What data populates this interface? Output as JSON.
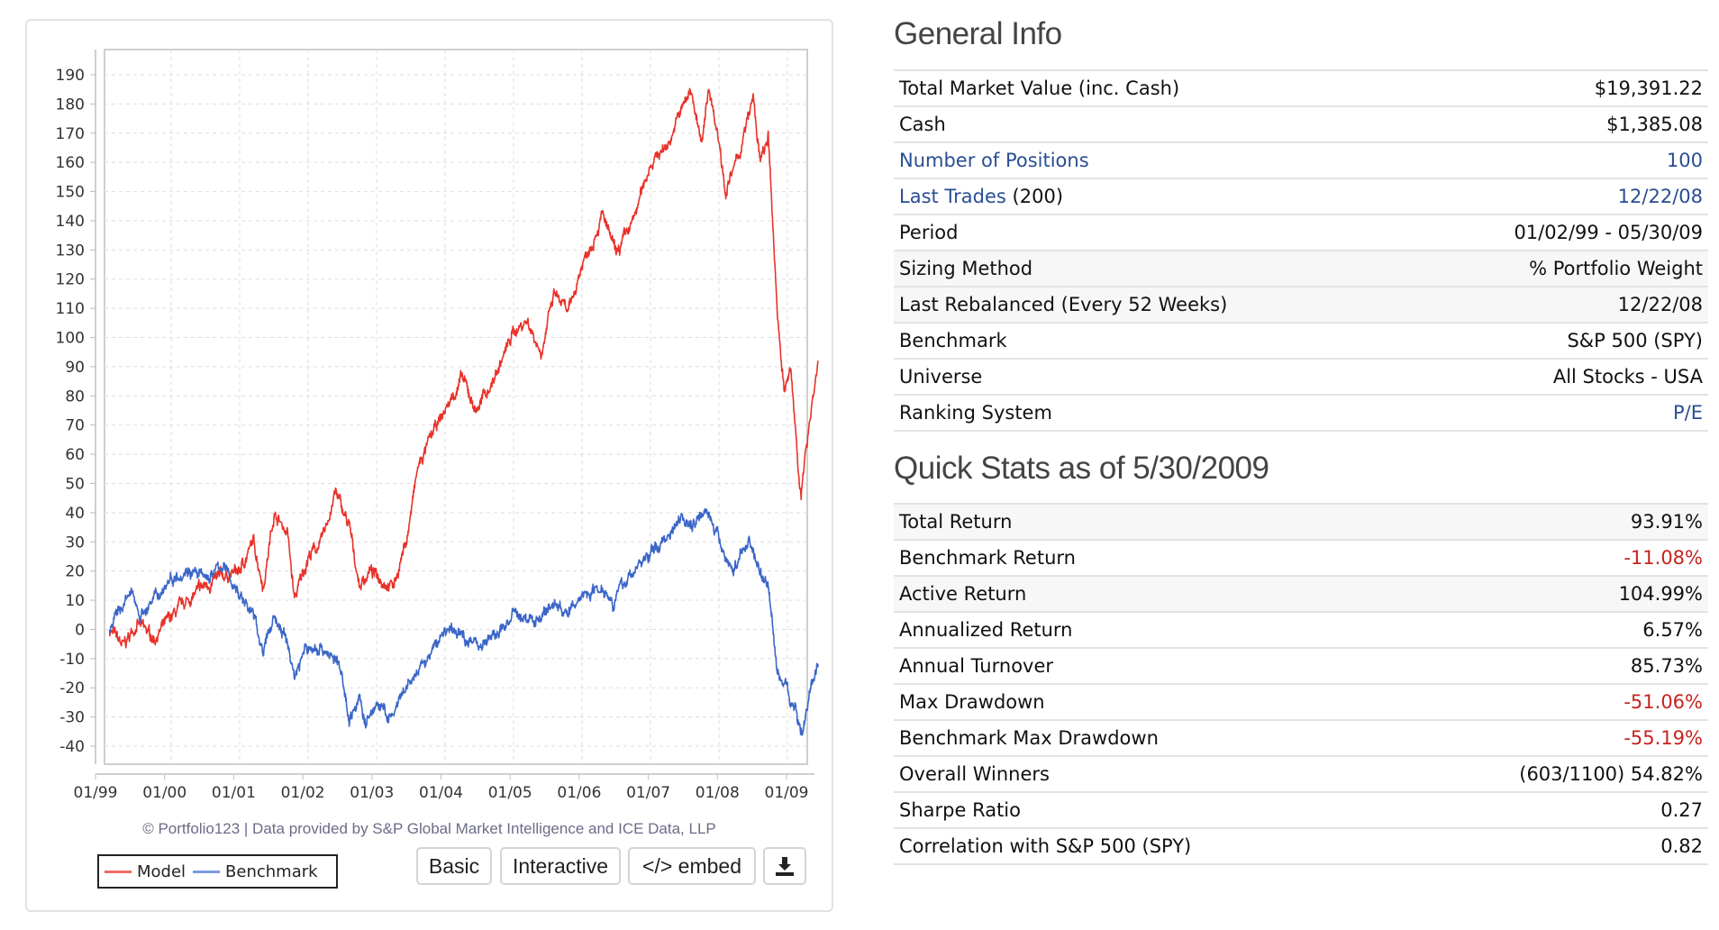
{
  "chart_panel": {
    "footer": "© Portfolio123 | Data provided by S&P Global Market Intelligence and ICE Data, LLP",
    "legend": [
      {
        "label": "Model",
        "color": "#e8322a"
      },
      {
        "label": "Benchmark",
        "color": "#3b66c8"
      }
    ],
    "buttons": {
      "basic": "Basic",
      "interactive": "Interactive",
      "embed": "</> embed",
      "download_icon": "download-icon"
    }
  },
  "chart_data": {
    "type": "line",
    "title": "",
    "xlabel": "",
    "ylabel": "",
    "ylim": [
      -40,
      190
    ],
    "yticks": [
      "190",
      "180",
      "170",
      "160",
      "150",
      "140",
      "130",
      "120",
      "110",
      "100",
      "90",
      "80",
      "70",
      "60",
      "50",
      "40",
      "30",
      "20",
      "10",
      "0",
      "-10",
      "-20",
      "-30",
      "-40"
    ],
    "xticks": [
      "01/99",
      "01/00",
      "01/01",
      "01/02",
      "01/03",
      "01/04",
      "01/05",
      "01/06",
      "01/07",
      "01/08",
      "01/09"
    ],
    "grid": true,
    "legend_position": "bottom-left",
    "series": [
      {
        "name": "Model",
        "color": "#e8322a",
        "points": [
          [
            1999.1,
            0
          ],
          [
            1999.3,
            -6
          ],
          [
            1999.5,
            2
          ],
          [
            1999.75,
            -3
          ],
          [
            2000.0,
            4
          ],
          [
            2000.25,
            10
          ],
          [
            2000.5,
            15
          ],
          [
            2000.75,
            18
          ],
          [
            2001.0,
            20
          ],
          [
            2001.2,
            30
          ],
          [
            2001.35,
            15
          ],
          [
            2001.5,
            40
          ],
          [
            2001.7,
            33
          ],
          [
            2001.8,
            10
          ],
          [
            2002.0,
            25
          ],
          [
            2002.2,
            30
          ],
          [
            2002.4,
            47
          ],
          [
            2002.6,
            35
          ],
          [
            2002.75,
            15
          ],
          [
            2002.9,
            20
          ],
          [
            2003.1,
            17
          ],
          [
            2003.25,
            15
          ],
          [
            2003.45,
            32
          ],
          [
            2003.6,
            55
          ],
          [
            2003.8,
            66
          ],
          [
            2004.0,
            75
          ],
          [
            2004.25,
            86
          ],
          [
            2004.45,
            75
          ],
          [
            2004.7,
            85
          ],
          [
            2005.0,
            102
          ],
          [
            2005.2,
            106
          ],
          [
            2005.4,
            95
          ],
          [
            2005.6,
            115
          ],
          [
            2005.8,
            108
          ],
          [
            2006.0,
            125
          ],
          [
            2006.3,
            142
          ],
          [
            2006.5,
            128
          ],
          [
            2006.75,
            140
          ],
          [
            2007.0,
            160
          ],
          [
            2007.25,
            166
          ],
          [
            2007.45,
            178
          ],
          [
            2007.6,
            185
          ],
          [
            2007.75,
            165
          ],
          [
            2007.85,
            186
          ],
          [
            2008.0,
            168
          ],
          [
            2008.1,
            150
          ],
          [
            2008.3,
            163
          ],
          [
            2008.5,
            182
          ],
          [
            2008.6,
            160
          ],
          [
            2008.72,
            168
          ],
          [
            2008.85,
            110
          ],
          [
            2008.95,
            82
          ],
          [
            2009.05,
            88
          ],
          [
            2009.2,
            45
          ],
          [
            2009.32,
            72
          ],
          [
            2009.45,
            92
          ]
        ]
      },
      {
        "name": "Benchmark",
        "color": "#3b66c8",
        "points": [
          [
            1999.1,
            0
          ],
          [
            1999.3,
            9
          ],
          [
            1999.45,
            12
          ],
          [
            1999.55,
            5
          ],
          [
            1999.75,
            10
          ],
          [
            2000.0,
            18
          ],
          [
            2000.25,
            21
          ],
          [
            2000.5,
            17
          ],
          [
            2000.75,
            22
          ],
          [
            2001.0,
            12
          ],
          [
            2001.2,
            5
          ],
          [
            2001.35,
            -8
          ],
          [
            2001.5,
            5
          ],
          [
            2001.7,
            -5
          ],
          [
            2001.8,
            -16
          ],
          [
            2001.95,
            -7
          ],
          [
            2002.2,
            -6
          ],
          [
            2002.45,
            -12
          ],
          [
            2002.6,
            -30
          ],
          [
            2002.75,
            -24
          ],
          [
            2002.85,
            -33
          ],
          [
            2003.0,
            -25
          ],
          [
            2003.2,
            -31
          ],
          [
            2003.5,
            -18
          ],
          [
            2003.75,
            -10
          ],
          [
            2004.0,
            0
          ],
          [
            2004.25,
            -2
          ],
          [
            2004.5,
            -5
          ],
          [
            2004.75,
            -2
          ],
          [
            2005.0,
            5
          ],
          [
            2005.3,
            3
          ],
          [
            2005.6,
            9
          ],
          [
            2005.8,
            5
          ],
          [
            2006.0,
            12
          ],
          [
            2006.3,
            15
          ],
          [
            2006.45,
            10
          ],
          [
            2006.75,
            20
          ],
          [
            2007.0,
            26
          ],
          [
            2007.25,
            32
          ],
          [
            2007.45,
            40
          ],
          [
            2007.6,
            35
          ],
          [
            2007.8,
            43
          ],
          [
            2008.0,
            30
          ],
          [
            2008.2,
            20
          ],
          [
            2008.45,
            31
          ],
          [
            2008.6,
            19
          ],
          [
            2008.72,
            16
          ],
          [
            2008.85,
            -15
          ],
          [
            2009.0,
            -20
          ],
          [
            2009.1,
            -27
          ],
          [
            2009.22,
            -35
          ],
          [
            2009.38,
            -16
          ],
          [
            2009.45,
            -12
          ]
        ]
      }
    ]
  },
  "general_info": {
    "title": "General Info",
    "rows": [
      {
        "label": "Total Market Value (inc. Cash)",
        "value": "$19,391.22"
      },
      {
        "label": "Cash",
        "value": "$1,385.08"
      },
      {
        "label": "Number of Positions",
        "value": "100"
      },
      {
        "label": "Last Trades",
        "label_suffix": "(200)",
        "value": "12/22/08"
      },
      {
        "label": "Period",
        "value": "01/02/99 - 05/30/09"
      },
      {
        "label": "Sizing Method",
        "value": "% Portfolio Weight"
      },
      {
        "label": "Last Rebalanced (Every 52 Weeks)",
        "value": "12/22/08"
      },
      {
        "label": "Benchmark",
        "value": "S&P 500 (SPY)"
      },
      {
        "label": "Universe",
        "value": "All Stocks - USA"
      },
      {
        "label": "Ranking System",
        "value": "P/E"
      }
    ]
  },
  "quick_stats": {
    "title": "Quick Stats as of 5/30/2009",
    "rows": [
      {
        "label": "Total Return",
        "value": "93.91%"
      },
      {
        "label": "Benchmark Return",
        "value": "-11.08%"
      },
      {
        "label": "Active Return",
        "value": "104.99%"
      },
      {
        "label": "Annualized Return",
        "value": "6.57%"
      },
      {
        "label": "Annual Turnover",
        "value": "85.73%"
      },
      {
        "label": "Max Drawdown",
        "value": "-51.06%"
      },
      {
        "label": "Benchmark Max Drawdown",
        "value": "-55.19%"
      },
      {
        "label": "Overall Winners",
        "value": "(603/1100) 54.82%"
      },
      {
        "label": "Sharpe Ratio",
        "value": "0.27"
      },
      {
        "label": "Correlation with S&P 500 (SPY)",
        "value": "0.82"
      }
    ]
  }
}
